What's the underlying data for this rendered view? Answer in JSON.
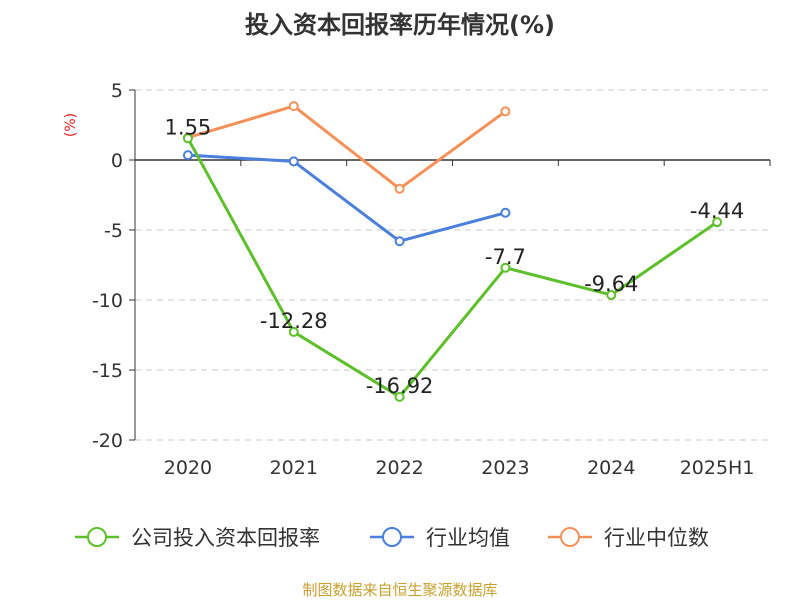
{
  "chart_data": {
    "type": "line",
    "title": "投入资本回报率历年情况(%)",
    "ylabel": "(%)",
    "categories": [
      "2020",
      "2021",
      "2022",
      "2023",
      "2024",
      "2025H1"
    ],
    "ylim": [
      -20,
      5
    ],
    "yticks": [
      5,
      0,
      -5,
      -10,
      -15,
      -20
    ],
    "grid": true,
    "legend_position": "bottom",
    "series": [
      {
        "name": "公司投入资本回报率",
        "color": "#5dbf2a",
        "values": [
          1.55,
          -12.28,
          -16.92,
          -7.7,
          -9.64,
          -4.44
        ],
        "labels": [
          "1.55",
          "-12.28",
          "-16.92",
          "-7.7",
          "-9.64",
          "-4.44"
        ]
      },
      {
        "name": "行业均值",
        "color": "#4a7fdc",
        "values": [
          0.35,
          -0.1,
          -5.8,
          -3.77,
          null,
          null
        ]
      },
      {
        "name": "行业中位数",
        "color": "#f59058",
        "values": [
          1.6,
          3.85,
          -2.05,
          3.47,
          null,
          null
        ]
      }
    ]
  },
  "footer": "制图数据来自恒生聚源数据库"
}
